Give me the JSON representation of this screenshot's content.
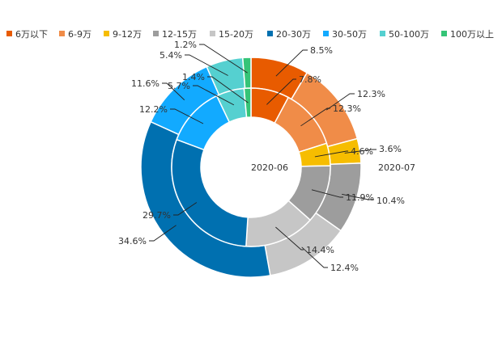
{
  "chart_data": {
    "type": "nested-donut",
    "categories": [
      "6万以下",
      "6-9万",
      "9-12万",
      "12-15万",
      "15-20万",
      "20-30万",
      "30-50万",
      "50-100万",
      "100万以上"
    ],
    "colors": [
      "#e85b00",
      "#f08c48",
      "#f6bd00",
      "#9d9d9d",
      "#c6c6c6",
      "#0070b0",
      "#12aaff",
      "#55d0d0",
      "#35c477"
    ],
    "series": [
      {
        "name": "2020-06",
        "ring": "inner",
        "values": [
          7.8,
          12.3,
          4.6,
          11.9,
          14.4,
          29.7,
          12.2,
          5.7,
          1.4
        ],
        "labels": [
          "7.8%",
          "12.3%",
          "4.6%",
          "11.9%",
          "14.4%",
          "29.7%",
          "12.2%",
          "5.7%",
          "1.4%"
        ]
      },
      {
        "name": "2020-07",
        "ring": "outer",
        "values": [
          8.5,
          12.3,
          3.6,
          10.4,
          12.4,
          34.6,
          11.6,
          5.4,
          1.2
        ],
        "labels": [
          "8.5%",
          "12.3%",
          "3.6%",
          "10.4%",
          "12.4%",
          "34.6%",
          "11.6%",
          "5.4%",
          "1.2%"
        ]
      }
    ],
    "legend_position": "top"
  }
}
